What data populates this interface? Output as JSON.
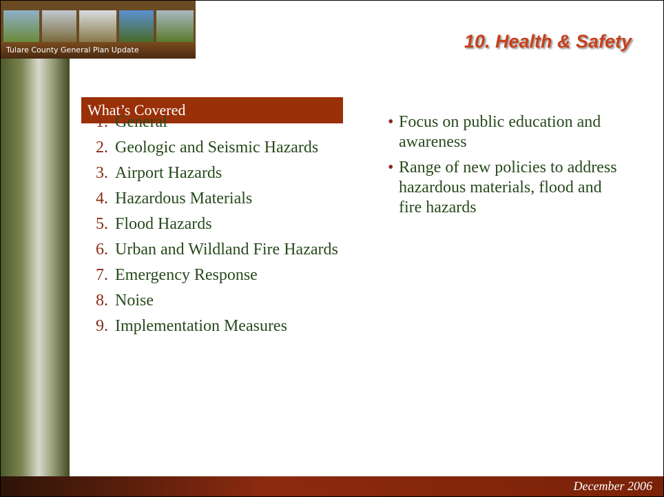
{
  "header": {
    "banner_caption": "Tulare County General Plan Update",
    "title": "10. Health & Safety"
  },
  "section": {
    "heading": "What’s Covered",
    "items": [
      {
        "number": "1.",
        "text": "General"
      },
      {
        "number": "2.",
        "text": "Geologic and Seismic Hazards"
      },
      {
        "number": "3.",
        "text": "Airport Hazards"
      },
      {
        "number": "4.",
        "text": "Hazardous Materials"
      },
      {
        "number": "5.",
        "text": "Flood Hazards"
      },
      {
        "number": "6.",
        "text": "Urban and Wildland Fire Hazards"
      },
      {
        "number": "7.",
        "text": "Emergency Response"
      },
      {
        "number": "8.",
        "text": "Noise"
      },
      {
        "number": "9.",
        "text": "Implementation Measures"
      }
    ]
  },
  "bullets": [
    "Focus on public education and awareness",
    "Range of new policies to address hazardous materials, flood and fire hazards"
  ],
  "footer": {
    "date": "December 2006"
  }
}
